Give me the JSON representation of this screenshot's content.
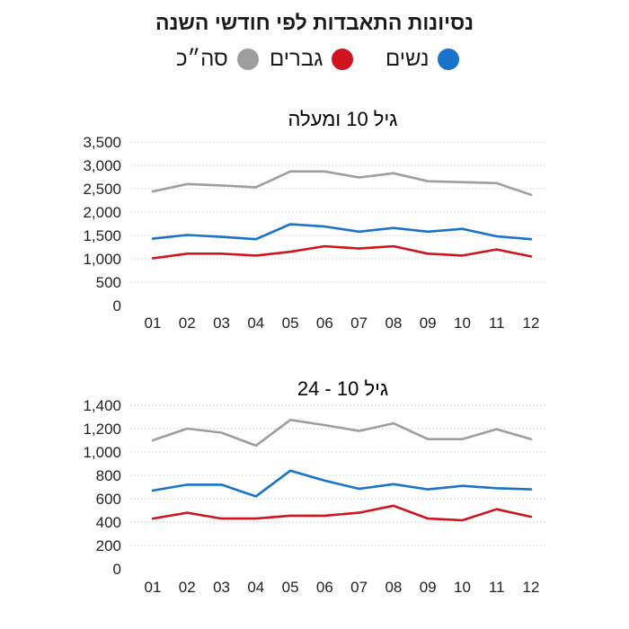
{
  "title": "נסיונות התאבדות לפי חודשי השנה",
  "legend": [
    {
      "label": "נשים",
      "color": "#1a73c8"
    },
    {
      "label": "גברים",
      "color": "#d0141e"
    },
    {
      "label": "סה״כ",
      "color": "#9e9e9e"
    }
  ],
  "chart_data": [
    {
      "type": "line",
      "title": "גיל 10 ומעלה",
      "categories": [
        "01",
        "02",
        "03",
        "04",
        "05",
        "06",
        "07",
        "08",
        "09",
        "10",
        "11",
        "12"
      ],
      "ylim": [
        0,
        3500
      ],
      "yticks": [
        "3,500",
        "3,000",
        "2,500",
        "2,000",
        "1,500",
        "1,000",
        "500",
        "0"
      ],
      "grid": true,
      "series": [
        {
          "name": "סה״כ",
          "color": "#9e9e9e",
          "values": [
            2440,
            2600,
            2570,
            2530,
            2870,
            2870,
            2740,
            2830,
            2660,
            2640,
            2620,
            2370
          ]
        },
        {
          "name": "נשים",
          "color": "#1a73c8",
          "values": [
            1430,
            1510,
            1470,
            1420,
            1740,
            1690,
            1580,
            1660,
            1580,
            1640,
            1480,
            1420
          ]
        },
        {
          "name": "גברים",
          "color": "#d0141e",
          "values": [
            1010,
            1110,
            1110,
            1070,
            1150,
            1270,
            1220,
            1270,
            1110,
            1070,
            1200,
            1050
          ]
        }
      ]
    },
    {
      "type": "line",
      "title": "גיל 10 - 24",
      "categories": [
        "01",
        "02",
        "03",
        "04",
        "05",
        "06",
        "07",
        "08",
        "09",
        "10",
        "11",
        "12"
      ],
      "ylim": [
        0,
        1400
      ],
      "yticks": [
        "1,400",
        "1,200",
        "1,000",
        "800",
        "600",
        "400",
        "200",
        "0"
      ],
      "grid": true,
      "series": [
        {
          "name": "סה״כ",
          "color": "#9e9e9e",
          "values": [
            1100,
            1200,
            1165,
            1055,
            1275,
            1230,
            1180,
            1245,
            1110,
            1110,
            1195,
            1110
          ]
        },
        {
          "name": "נשים",
          "color": "#1a73c8",
          "values": [
            670,
            720,
            720,
            620,
            840,
            755,
            685,
            725,
            680,
            710,
            690,
            680
          ]
        },
        {
          "name": "גברים",
          "color": "#d0141e",
          "values": [
            430,
            480,
            430,
            430,
            455,
            455,
            480,
            540,
            430,
            415,
            510,
            445
          ]
        }
      ]
    }
  ]
}
